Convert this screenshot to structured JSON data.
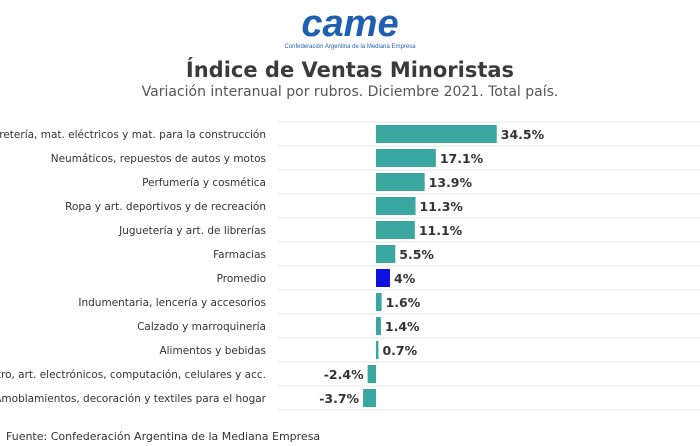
{
  "logo": {
    "text": "came",
    "tagline": "Confederación Argentina de la Mediana Empresa",
    "color": "#1f5fb0"
  },
  "header": {
    "title": "Índice de Ventas Minoristas",
    "subtitle": "Variación interanual por rubros. Diciembre 2021. Total país."
  },
  "footer": {
    "source": "Fuente: Confederación Argentina de la Mediana Empresa"
  },
  "colors": {
    "bar": "#3aa6a0",
    "highlight": "#1010e0",
    "grid": "#e6e6e6"
  },
  "chart_data": {
    "type": "bar",
    "orientation": "horizontal",
    "title": "Índice de Ventas Minoristas",
    "subtitle": "Variación interanual por rubros. Diciembre 2021. Total país.",
    "xlabel": "",
    "ylabel": "",
    "xlim": [
      -3.7,
      34.5
    ],
    "grid": true,
    "categories": [
      "Ferretería, mat. eléctricos y mat. para la construcción",
      "Neumáticos, repuestos de autos y motos",
      "Perfumería y cosmética",
      "Ropa y art. deportivos y de recreación",
      "Juguetería y art. de librerías",
      "Farmacias",
      "Promedio",
      "Indumentaria, lencería y accesorios",
      "Calzado y marroquinería",
      "Alimentos y bebidas",
      "Electro, art. electrónicos, computación, celulares y acc.",
      "Amoblamientos, decoración y textiles para el hogar"
    ],
    "values": [
      34.5,
      17.1,
      13.9,
      11.3,
      11.1,
      5.5,
      4,
      1.6,
      1.4,
      0.7,
      -2.4,
      -3.7
    ],
    "value_labels": [
      "34.5%",
      "17.1%",
      "13.9%",
      "11.3%",
      "11.1%",
      "5.5%",
      "4%",
      "1.6%",
      "1.4%",
      "0.7%",
      "-2.4%",
      "-3.7%"
    ],
    "highlight_category": "Promedio"
  }
}
